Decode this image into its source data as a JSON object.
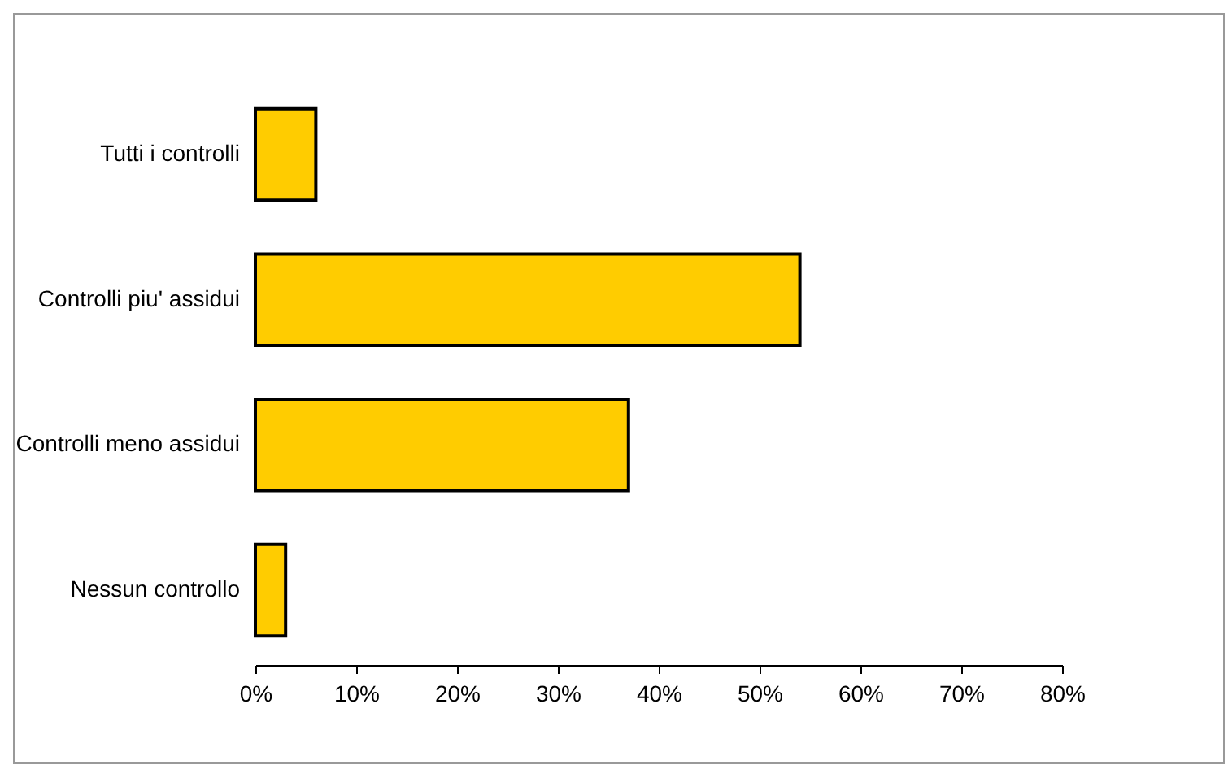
{
  "chart_data": {
    "type": "bar",
    "orientation": "horizontal",
    "categories": [
      "Tutti i controlli",
      "Controlli piu' assidui",
      "Controlli meno assidui",
      "Nessun controllo"
    ],
    "values": [
      6,
      54,
      37,
      3
    ],
    "color": "#ffcc00",
    "xlim": [
      0,
      80
    ],
    "xticks": [
      {
        "value": 0,
        "label": "0%"
      },
      {
        "value": 10,
        "label": "10%"
      },
      {
        "value": 20,
        "label": "20%"
      },
      {
        "value": 30,
        "label": "30%"
      },
      {
        "value": 40,
        "label": "40%"
      },
      {
        "value": 50,
        "label": "50%"
      },
      {
        "value": 60,
        "label": "60%"
      },
      {
        "value": 70,
        "label": "70%"
      },
      {
        "value": 80,
        "label": "80%"
      }
    ],
    "grid": false
  }
}
